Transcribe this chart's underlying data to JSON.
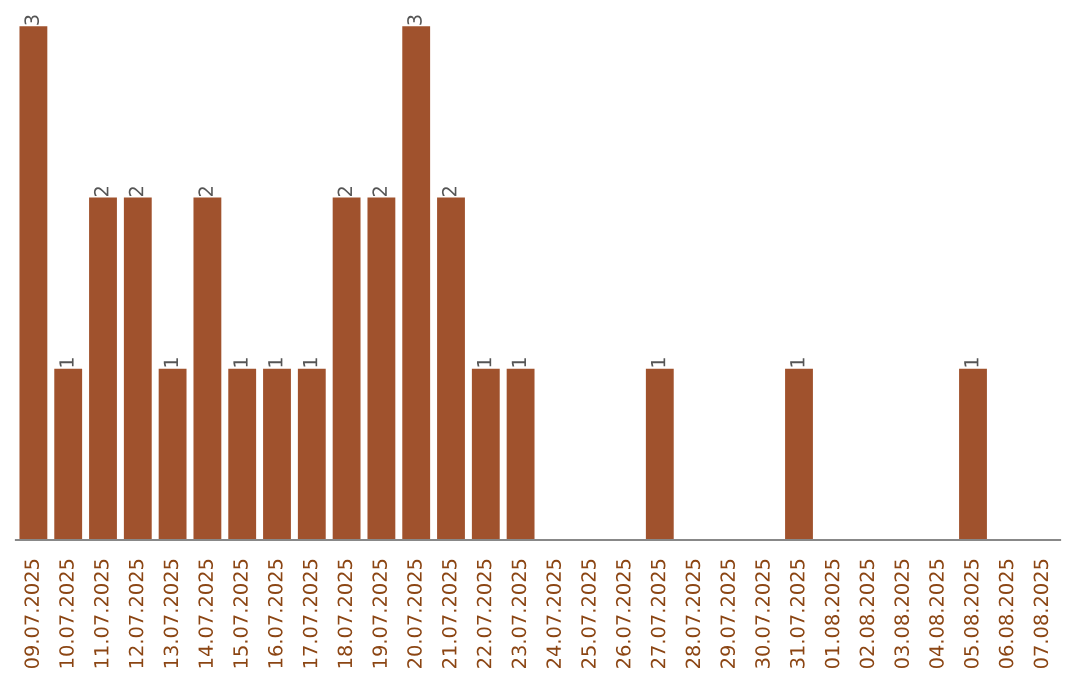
{
  "chart_data": {
    "type": "bar",
    "categories": [
      "09.07.2025",
      "10.07.2025",
      "11.07.2025",
      "12.07.2025",
      "13.07.2025",
      "14.07.2025",
      "15.07.2025",
      "16.07.2025",
      "17.07.2025",
      "18.07.2025",
      "19.07.2025",
      "20.07.2025",
      "21.07.2025",
      "22.07.2025",
      "23.07.2025",
      "24.07.2025",
      "25.07.2025",
      "26.07.2025",
      "27.07.2025",
      "28.07.2025",
      "29.07.2025",
      "30.07.2025",
      "31.07.2025",
      "01.08.2025",
      "02.08.2025",
      "03.08.2025",
      "04.08.2025",
      "05.08.2025",
      "06.08.2025",
      "07.08.2025"
    ],
    "values": [
      3,
      1,
      2,
      2,
      1,
      2,
      1,
      1,
      1,
      2,
      2,
      3,
      2,
      1,
      1,
      null,
      null,
      null,
      1,
      null,
      null,
      null,
      1,
      null,
      null,
      null,
      null,
      1,
      null,
      null
    ],
    "color": "#a0522d",
    "data_labels": true,
    "tick_labels": "x",
    "grid": false,
    "legend": false
  }
}
